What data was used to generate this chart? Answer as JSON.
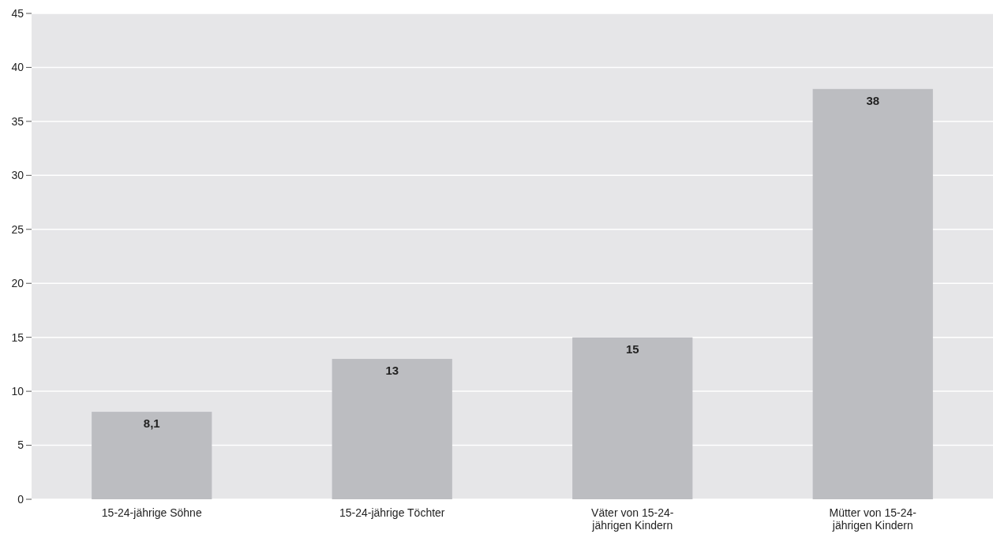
{
  "chart_data": {
    "type": "bar",
    "categories": [
      "15-24-jährige Söhne",
      "15-24-jährige Töchter",
      "Väter von 15-24-jährigen Kindern",
      "Mütter von 15-24-jährigen Kindern"
    ],
    "values": [
      8.1,
      13,
      15,
      38
    ],
    "value_labels": [
      "8,1",
      "13",
      "15",
      "38"
    ],
    "color": "#bcbdc1",
    "ylim": [
      0,
      45
    ],
    "yticks": [
      0,
      5,
      10,
      15,
      20,
      25,
      30,
      35,
      40,
      45
    ],
    "grid": "y"
  }
}
